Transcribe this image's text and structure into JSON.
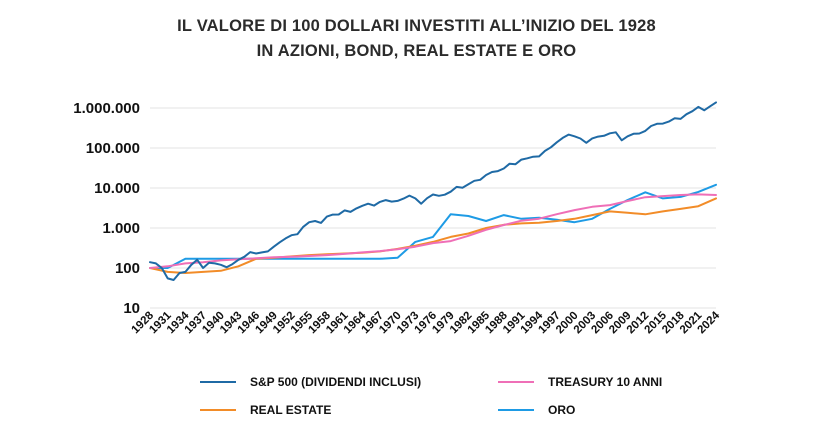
{
  "title_lines": [
    "IL VALORE DI 100 DOLLARI INVESTITI ALL’INIZIO DEL 1928",
    "IN AZIONI, BOND, REAL ESTATE E ORO"
  ],
  "chart_data": {
    "type": "line",
    "title": "IL VALORE DI 100 DOLLARI INVESTITI ALL’INIZIO DEL 1928 IN AZIONI, BOND, REAL ESTATE E ORO",
    "xlabel": "",
    "ylabel": "",
    "yscale": "log",
    "ylim": [
      10,
      1000000
    ],
    "xlim": [
      1928,
      2024
    ],
    "y_tick_values": [
      10,
      100,
      1000,
      10000,
      100000,
      1000000
    ],
    "y_tick_labels": [
      "10",
      "100",
      "1.000",
      "10.000",
      "100.000",
      "1.000.000"
    ],
    "x_tick_labels": [
      "1928",
      "1931",
      "1934",
      "1937",
      "1940",
      "1943",
      "1946",
      "1949",
      "1952",
      "1955",
      "1958",
      "1961",
      "1964",
      "1967",
      "1970",
      "1973",
      "1976",
      "1979",
      "1982",
      "1985",
      "1988",
      "1991",
      "1994",
      "1997",
      "2000",
      "2003",
      "2006",
      "2009",
      "2012",
      "2015",
      "2018",
      "2021",
      "2024"
    ],
    "grid": true,
    "legend_position": "bottom",
    "series": [
      {
        "name": "S&P 500 (DIVIDENDI INCLUSI)",
        "color": "#1f6aa5",
        "x": [
          1928,
          1929,
          1930,
          1931,
          1932,
          1933,
          1934,
          1935,
          1936,
          1937,
          1938,
          1939,
          1940,
          1941,
          1942,
          1943,
          1944,
          1945,
          1946,
          1947,
          1948,
          1949,
          1950,
          1951,
          1952,
          1953,
          1954,
          1955,
          1956,
          1957,
          1958,
          1959,
          1960,
          1961,
          1962,
          1963,
          1964,
          1965,
          1966,
          1967,
          1968,
          1969,
          1970,
          1971,
          1972,
          1973,
          1974,
          1975,
          1976,
          1977,
          1978,
          1979,
          1980,
          1981,
          1982,
          1983,
          1984,
          1985,
          1986,
          1987,
          1988,
          1989,
          1990,
          1991,
          1992,
          1993,
          1994,
          1995,
          1996,
          1997,
          1998,
          1999,
          2000,
          2001,
          2002,
          2003,
          2004,
          2005,
          2006,
          2007,
          2008,
          2009,
          2010,
          2011,
          2012,
          2013,
          2014,
          2015,
          2016,
          2017,
          2018,
          2019,
          2020,
          2021,
          2022,
          2023,
          2024
        ],
        "values": [
          140,
          130,
          100,
          55,
          50,
          75,
          80,
          120,
          160,
          100,
          135,
          130,
          120,
          105,
          125,
          160,
          190,
          250,
          230,
          245,
          260,
          340,
          440,
          550,
          660,
          700,
          1070,
          1400,
          1500,
          1340,
          1930,
          2160,
          2180,
          2760,
          2520,
          3090,
          3590,
          4040,
          3630,
          4500,
          4990,
          4570,
          4750,
          5430,
          6460,
          5510,
          4050,
          5560,
          6880,
          6390,
          6810,
          8060,
          10680,
          10160,
          12340,
          15100,
          16050,
          21150,
          25100,
          26420,
          30810,
          40570,
          39310,
          51290,
          55200,
          60760,
          61560,
          84680,
          104120,
          138850,
          178530,
          216100,
          196420,
          173080,
          134830,
          173510,
          192390,
          201840,
          233710,
          246560,
          155340,
          196440,
          226020,
          230810,
          267760,
          354470,
          402990,
          408530,
          457350,
          557140,
          532700,
          700520,
          829400,
          1067720,
          874300,
          1104110,
          1380590
        ]
      },
      {
        "name": "TREASURY 10 ANNI",
        "color": "#ef6fb7",
        "x": [
          1928,
          1931,
          1934,
          1937,
          1940,
          1943,
          1946,
          1949,
          1952,
          1955,
          1958,
          1961,
          1964,
          1967,
          1970,
          1973,
          1976,
          1979,
          1982,
          1985,
          1988,
          1991,
          1994,
          1997,
          2000,
          2003,
          2006,
          2009,
          2012,
          2015,
          2018,
          2021,
          2024
        ],
        "values": [
          100,
          110,
          130,
          140,
          155,
          165,
          175,
          185,
          190,
          200,
          210,
          225,
          245,
          265,
          295,
          340,
          420,
          470,
          640,
          900,
          1190,
          1520,
          1710,
          2210,
          2800,
          3380,
          3730,
          4740,
          5890,
          6290,
          6690,
          6920,
          6700
        ]
      },
      {
        "name": "REAL ESTATE",
        "color": "#f28c28",
        "x": [
          1928,
          1931,
          1934,
          1937,
          1940,
          1943,
          1946,
          1949,
          1952,
          1955,
          1958,
          1961,
          1964,
          1967,
          1970,
          1973,
          1976,
          1979,
          1982,
          1985,
          1988,
          1991,
          1994,
          1997,
          2000,
          2003,
          2006,
          2009,
          2012,
          2015,
          2018,
          2021,
          2024
        ],
        "values": [
          100,
          80,
          75,
          80,
          85,
          110,
          170,
          180,
          195,
          210,
          220,
          230,
          240,
          260,
          300,
          360,
          450,
          600,
          730,
          1000,
          1200,
          1300,
          1350,
          1500,
          1700,
          2100,
          2600,
          2400,
          2200,
          2600,
          3000,
          3500,
          5500
        ]
      },
      {
        "name": "ORO",
        "color": "#1e9be5",
        "x": [
          1928,
          1931,
          1934,
          1937,
          1940,
          1943,
          1946,
          1949,
          1952,
          1955,
          1958,
          1961,
          1964,
          1967,
          1970,
          1973,
          1976,
          1979,
          1982,
          1985,
          1988,
          1991,
          1994,
          1997,
          2000,
          2003,
          2006,
          2009,
          2012,
          2015,
          2018,
          2021,
          2024
        ],
        "values": [
          100,
          100,
          170,
          170,
          170,
          170,
          170,
          170,
          170,
          170,
          170,
          170,
          170,
          170,
          180,
          450,
          600,
          2200,
          2000,
          1500,
          2100,
          1700,
          1800,
          1600,
          1400,
          1700,
          3000,
          5000,
          7800,
          5500,
          6000,
          8000,
          12000
        ]
      }
    ]
  }
}
